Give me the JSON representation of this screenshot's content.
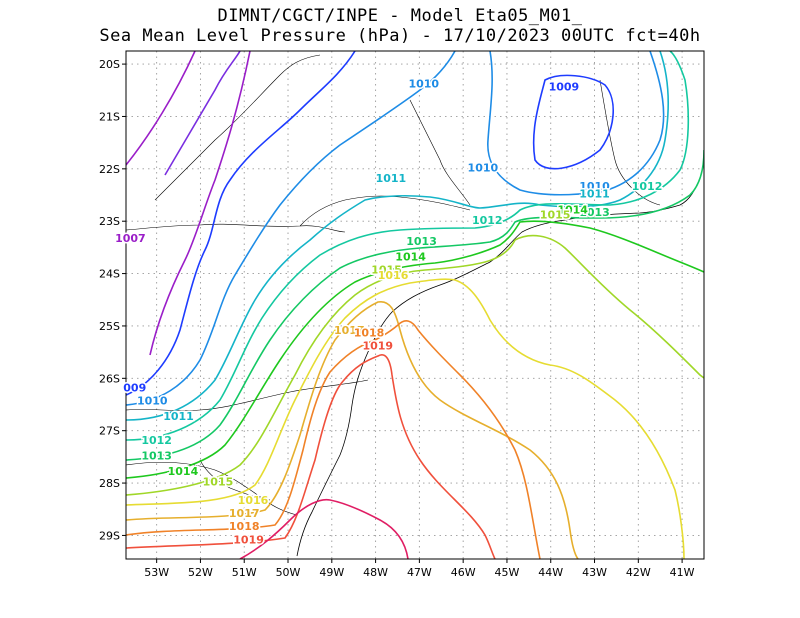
{
  "title": "DIMNT/CGCT/INPE -  Model Eta05_M01_",
  "subtitle": "Sea Mean Level Pressure (hPa) - 17/10/2023 00UTC fct=40h",
  "chart_data": {
    "type": "contour-map",
    "title": "DIMNT/CGCT/INPE -  Model Eta05_M01_",
    "subtitle": "Sea Mean Level Pressure (hPa) - 17/10/2023 00UTC fct=40h",
    "xlim": [
      -53.7,
      -40.5
    ],
    "ylim": [
      -29.45,
      -19.75
    ],
    "x_ticks": [
      -53,
      -52,
      -51,
      -50,
      -49,
      -48,
      -47,
      -46,
      -45,
      -44,
      -43,
      -42,
      -41
    ],
    "x_tick_labels": [
      "53W",
      "52W",
      "51W",
      "50W",
      "49W",
      "48W",
      "47W",
      "46W",
      "45W",
      "44W",
      "43W",
      "42W",
      "41W"
    ],
    "y_ticks": [
      -20,
      -21,
      -22,
      -23,
      -24,
      -25,
      -26,
      -27,
      -28,
      -29
    ],
    "y_tick_labels": [
      "20S",
      "21S",
      "22S",
      "23S",
      "24S",
      "25S",
      "26S",
      "27S",
      "28S",
      "29S"
    ],
    "grid": true,
    "contour_labels": [
      {
        "text": "1007",
        "lon": -53.6,
        "lat": -23.4,
        "color": "#9a1ec8"
      },
      {
        "text": "1009",
        "lon": -43.7,
        "lat": -20.5,
        "color": "#1e3cff"
      },
      {
        "text": "009",
        "lon": -53.5,
        "lat": -26.25,
        "color": "#1e3cff"
      },
      {
        "text": "1010",
        "lon": -46.9,
        "lat": -20.45,
        "color": "#1e8ce6"
      },
      {
        "text": "1010",
        "lon": -45.55,
        "lat": -22.05,
        "color": "#1e8ce6"
      },
      {
        "text": "1010",
        "lon": -43.0,
        "lat": -22.4,
        "color": "#1e8ce6"
      },
      {
        "text": "1010",
        "lon": -53.1,
        "lat": -26.5,
        "color": "#1e8ce6"
      },
      {
        "text": "1011",
        "lon": -47.65,
        "lat": -22.25,
        "color": "#14b4c8"
      },
      {
        "text": "1011",
        "lon": -43.0,
        "lat": -22.55,
        "color": "#14b4c8"
      },
      {
        "text": "1011",
        "lon": -52.5,
        "lat": -26.8,
        "color": "#14b4c8"
      },
      {
        "text": "1012",
        "lon": -45.45,
        "lat": -23.05,
        "color": "#14c8a0"
      },
      {
        "text": "1012",
        "lon": -41.8,
        "lat": -22.4,
        "color": "#14c8a0"
      },
      {
        "text": "1012",
        "lon": -53.0,
        "lat": -27.25,
        "color": "#14c8a0"
      },
      {
        "text": "1013",
        "lon": -46.95,
        "lat": -23.45,
        "color": "#14c864"
      },
      {
        "text": "1013",
        "lon": -43.0,
        "lat": -22.9,
        "color": "#14c864"
      },
      {
        "text": "1013",
        "lon": -53.0,
        "lat": -27.55,
        "color": "#14c864"
      },
      {
        "text": "1014",
        "lon": -47.2,
        "lat": -23.75,
        "color": "#1ec81e"
      },
      {
        "text": "1014",
        "lon": -43.5,
        "lat": -22.85,
        "color": "#1ec81e"
      },
      {
        "text": "1014",
        "lon": -52.4,
        "lat": -27.85,
        "color": "#1ec81e"
      },
      {
        "text": "1015",
        "lon": -47.75,
        "lat": -24.0,
        "color": "#a0d728"
      },
      {
        "text": "1015",
        "lon": -43.9,
        "lat": -22.95,
        "color": "#a0d728"
      },
      {
        "text": "1015",
        "lon": -51.6,
        "lat": -28.05,
        "color": "#a0d728"
      },
      {
        "text": "1016",
        "lon": -47.6,
        "lat": -24.1,
        "color": "#e6dc32"
      },
      {
        "text": "1016",
        "lon": -50.8,
        "lat": -28.4,
        "color": "#e6dc32"
      },
      {
        "text": "1017",
        "lon": -48.6,
        "lat": -25.15,
        "color": "#e6af2d"
      },
      {
        "text": "1017",
        "lon": -51.0,
        "lat": -28.65,
        "color": "#e6af2d"
      },
      {
        "text": "1018",
        "lon": -48.15,
        "lat": -25.2,
        "color": "#f08228"
      },
      {
        "text": "1018",
        "lon": -51.0,
        "lat": -28.9,
        "color": "#f08228"
      },
      {
        "text": "1019",
        "lon": -47.95,
        "lat": -25.45,
        "color": "#f0503c"
      },
      {
        "text": "1019",
        "lon": -50.9,
        "lat": -29.15,
        "color": "#f0503c"
      }
    ]
  }
}
